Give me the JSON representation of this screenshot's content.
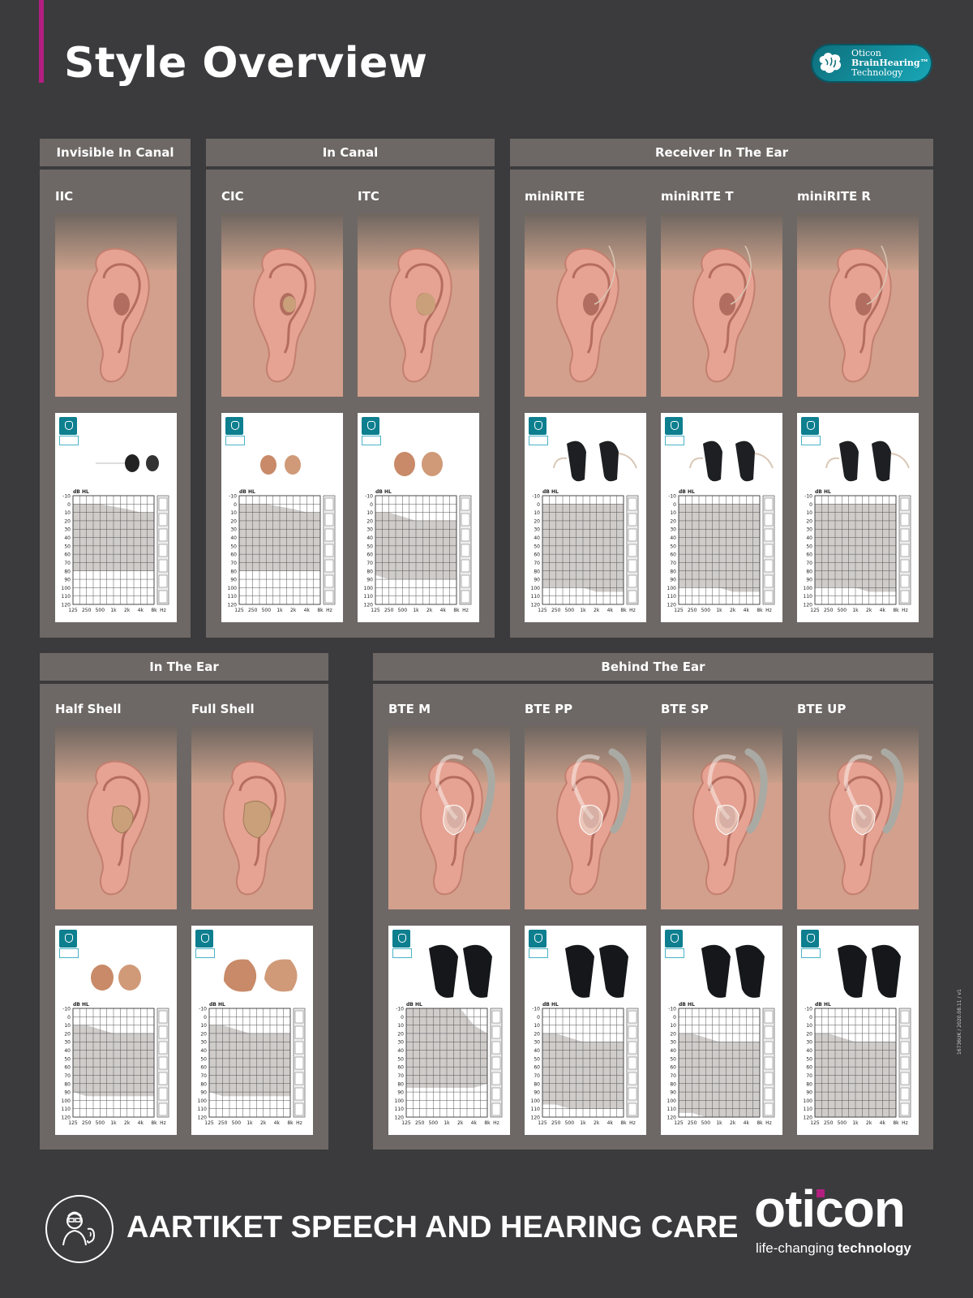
{
  "header": {
    "title": "Style Overview"
  },
  "badge": {
    "line1": "Oticon",
    "line2": "BrainHearing™",
    "line3": "Technology"
  },
  "categories": [
    {
      "label": "Invisible In Canal"
    },
    {
      "label": "In Canal"
    },
    {
      "label": "Receiver In The Ear"
    },
    {
      "label": "In The Ear"
    },
    {
      "label": "Behind The Ear"
    }
  ],
  "audiogram": {
    "ylabel": "dB HL",
    "yticks": [
      "-10",
      "0",
      "10",
      "20",
      "30",
      "40",
      "50",
      "60",
      "70",
      "80",
      "90",
      "100",
      "110",
      "120"
    ],
    "xticks": [
      "125",
      "250",
      "500",
      "1k",
      "2k",
      "4k",
      "8k",
      "Hz"
    ],
    "ylim": [
      -10,
      120
    ]
  },
  "styles": [
    {
      "name": "IIC",
      "device": "iic",
      "fit_range_db": {
        "top": [
          0,
          0,
          0,
          3,
          6,
          10,
          10
        ],
        "bottom": [
          80,
          80,
          80,
          80,
          80,
          80,
          80
        ]
      }
    },
    {
      "name": "CIC",
      "device": "cic",
      "fit_range_db": {
        "top": [
          0,
          0,
          0,
          3,
          6,
          10,
          10
        ],
        "bottom": [
          80,
          80,
          80,
          80,
          80,
          80,
          80
        ]
      }
    },
    {
      "name": "ITC",
      "device": "itc",
      "fit_range_db": {
        "top": [
          10,
          10,
          15,
          20,
          20,
          20,
          20
        ],
        "bottom": [
          85,
          90,
          90,
          90,
          90,
          90,
          90
        ]
      }
    },
    {
      "name": "miniRITE",
      "device": "rite",
      "fit_range_db": {
        "top": [
          0,
          0,
          0,
          0,
          0,
          0,
          0
        ],
        "bottom": [
          100,
          100,
          100,
          100,
          105,
          105,
          105
        ]
      }
    },
    {
      "name": "miniRITE T",
      "device": "rite",
      "fit_range_db": {
        "top": [
          0,
          0,
          0,
          0,
          0,
          0,
          0
        ],
        "bottom": [
          100,
          100,
          100,
          100,
          105,
          105,
          105
        ]
      }
    },
    {
      "name": "miniRITE R",
      "device": "rite",
      "fit_range_db": {
        "top": [
          0,
          0,
          0,
          0,
          0,
          0,
          0
        ],
        "bottom": [
          100,
          100,
          100,
          100,
          105,
          105,
          105
        ]
      }
    },
    {
      "name": "Half Shell",
      "device": "halfshell",
      "fit_range_db": {
        "top": [
          10,
          10,
          15,
          20,
          20,
          20,
          20
        ],
        "bottom": [
          90,
          95,
          95,
          95,
          95,
          95,
          95
        ]
      }
    },
    {
      "name": "Full Shell",
      "device": "fullshell",
      "fit_range_db": {
        "top": [
          10,
          10,
          15,
          20,
          20,
          20,
          20
        ],
        "bottom": [
          90,
          95,
          95,
          95,
          95,
          95,
          95
        ]
      }
    },
    {
      "name": "BTE M",
      "device": "bte",
      "fit_range_db": {
        "top": [
          -10,
          -10,
          -10,
          -10,
          -10,
          10,
          20
        ],
        "bottom": [
          85,
          85,
          85,
          85,
          85,
          85,
          80
        ]
      }
    },
    {
      "name": "BTE PP",
      "device": "bte",
      "fit_range_db": {
        "top": [
          20,
          20,
          25,
          30,
          30,
          30,
          30
        ],
        "bottom": [
          105,
          105,
          110,
          110,
          110,
          110,
          110
        ]
      }
    },
    {
      "name": "BTE SP",
      "device": "bte",
      "fit_range_db": {
        "top": [
          20,
          20,
          25,
          30,
          30,
          30,
          30
        ],
        "bottom": [
          115,
          115,
          120,
          120,
          120,
          120,
          120
        ]
      }
    },
    {
      "name": "BTE UP",
      "device": "bte",
      "fit_range_db": {
        "top": [
          20,
          20,
          25,
          30,
          30,
          30,
          30
        ],
        "bottom": [
          125,
          130,
          130,
          130,
          130,
          130,
          130
        ]
      }
    }
  ],
  "footer": {
    "clinic": "AARTIKET SPEECH AND HEARING CARE",
    "brand": "oticon",
    "tagline_regular": "life-changing ",
    "tagline_bold": "technology",
    "side_code": "16736UK / 2020.08.11 / v1"
  },
  "colors": {
    "background": "#3b3b3d",
    "panel": "#6d6865",
    "accent": "#b21f80",
    "teal": "#0d7f8f"
  }
}
